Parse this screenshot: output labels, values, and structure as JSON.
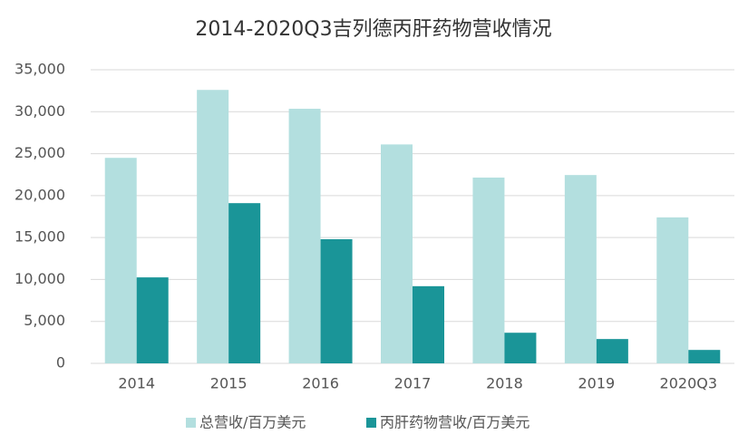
{
  "chart_data": {
    "type": "bar",
    "title": "2014-2020Q3吉列德丙肝药物营收情况",
    "categories": [
      "2014",
      "2015",
      "2016",
      "2017",
      "2018",
      "2019",
      "2020Q3"
    ],
    "series": [
      {
        "name": "总营收/百万美元",
        "color": "#b3dfdf",
        "values": [
          24500,
          32600,
          30350,
          26100,
          22150,
          22450,
          17400
        ]
      },
      {
        "name": "丙肝药物营收/百万美元",
        "color": "#1a9598",
        "values": [
          10250,
          19100,
          14800,
          9200,
          3650,
          2900,
          1600
        ]
      }
    ],
    "ylim": [
      0,
      35000
    ],
    "yticks": [
      0,
      {
        "value": 5000,
        "label": "5,000"
      },
      {
        "value": 10000,
        "label": "10,000"
      },
      {
        "value": 15000,
        "label": "15,000"
      },
      {
        "value": 20000,
        "label": "20,000"
      },
      {
        "value": 25000,
        "label": "25,000"
      },
      {
        "value": 30000,
        "label": "30,000"
      },
      {
        "value": 35000,
        "label": "35,000"
      }
    ],
    "grid": true,
    "legend": "bottom"
  }
}
